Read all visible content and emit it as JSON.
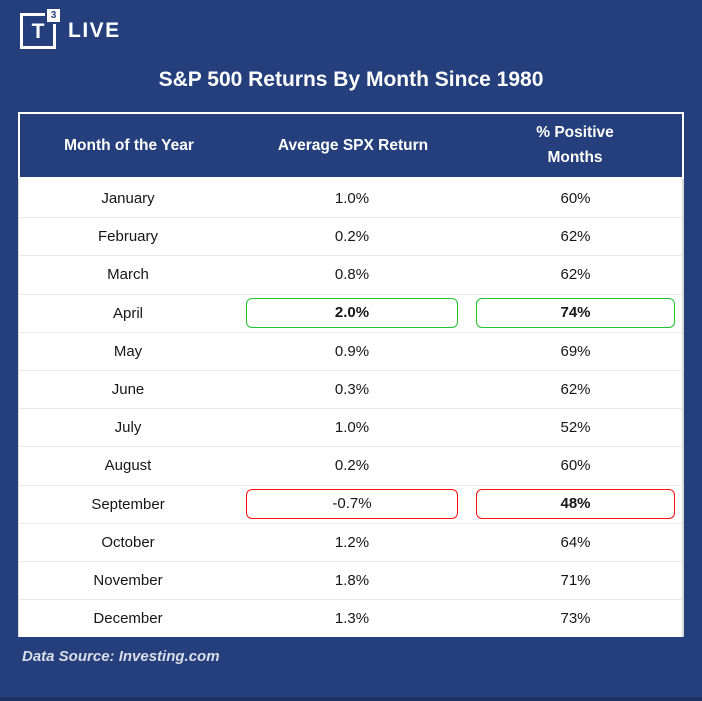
{
  "brand": {
    "logo_letter": "T",
    "logo_superscript": "3",
    "logo_text": "LIVE"
  },
  "title": "S&P 500 Returns By Month Since 1980",
  "chart_data": {
    "type": "table",
    "title": "S&P 500 Returns By Month Since 1980",
    "columns": [
      "Month of the Year",
      "Average SPX Return",
      "% Positive Months"
    ],
    "rows": [
      {
        "month": "January",
        "avg_return": "1.0%",
        "pct_positive": "60%",
        "highlight": null,
        "avg_bold": false,
        "pct_bold": false
      },
      {
        "month": "February",
        "avg_return": "0.2%",
        "pct_positive": "62%",
        "highlight": null,
        "avg_bold": false,
        "pct_bold": false
      },
      {
        "month": "March",
        "avg_return": "0.8%",
        "pct_positive": "62%",
        "highlight": null,
        "avg_bold": false,
        "pct_bold": false
      },
      {
        "month": "April",
        "avg_return": "2.0%",
        "pct_positive": "74%",
        "highlight": "green",
        "avg_bold": true,
        "pct_bold": true
      },
      {
        "month": "May",
        "avg_return": "0.9%",
        "pct_positive": "69%",
        "highlight": null,
        "avg_bold": false,
        "pct_bold": false
      },
      {
        "month": "June",
        "avg_return": "0.3%",
        "pct_positive": "62%",
        "highlight": null,
        "avg_bold": false,
        "pct_bold": false
      },
      {
        "month": "July",
        "avg_return": "1.0%",
        "pct_positive": "52%",
        "highlight": null,
        "avg_bold": false,
        "pct_bold": false
      },
      {
        "month": "August",
        "avg_return": "0.2%",
        "pct_positive": "60%",
        "highlight": null,
        "avg_bold": false,
        "pct_bold": false
      },
      {
        "month": "September",
        "avg_return": "-0.7%",
        "pct_positive": "48%",
        "highlight": "red",
        "avg_bold": false,
        "pct_bold": true
      },
      {
        "month": "October",
        "avg_return": "1.2%",
        "pct_positive": "64%",
        "highlight": null,
        "avg_bold": false,
        "pct_bold": false
      },
      {
        "month": "November",
        "avg_return": "1.8%",
        "pct_positive": "71%",
        "highlight": null,
        "avg_bold": false,
        "pct_bold": false
      },
      {
        "month": "December",
        "avg_return": "1.3%",
        "pct_positive": "73%",
        "highlight": null,
        "avg_bold": false,
        "pct_bold": false
      }
    ]
  },
  "footer": {
    "source": "Data Source: Investing.com"
  },
  "colors": {
    "background": "#243f7c",
    "highlight_green": "#1ec52d",
    "highlight_red": "#f71111",
    "header_text": "#ffffff",
    "body_text": "#161616"
  }
}
